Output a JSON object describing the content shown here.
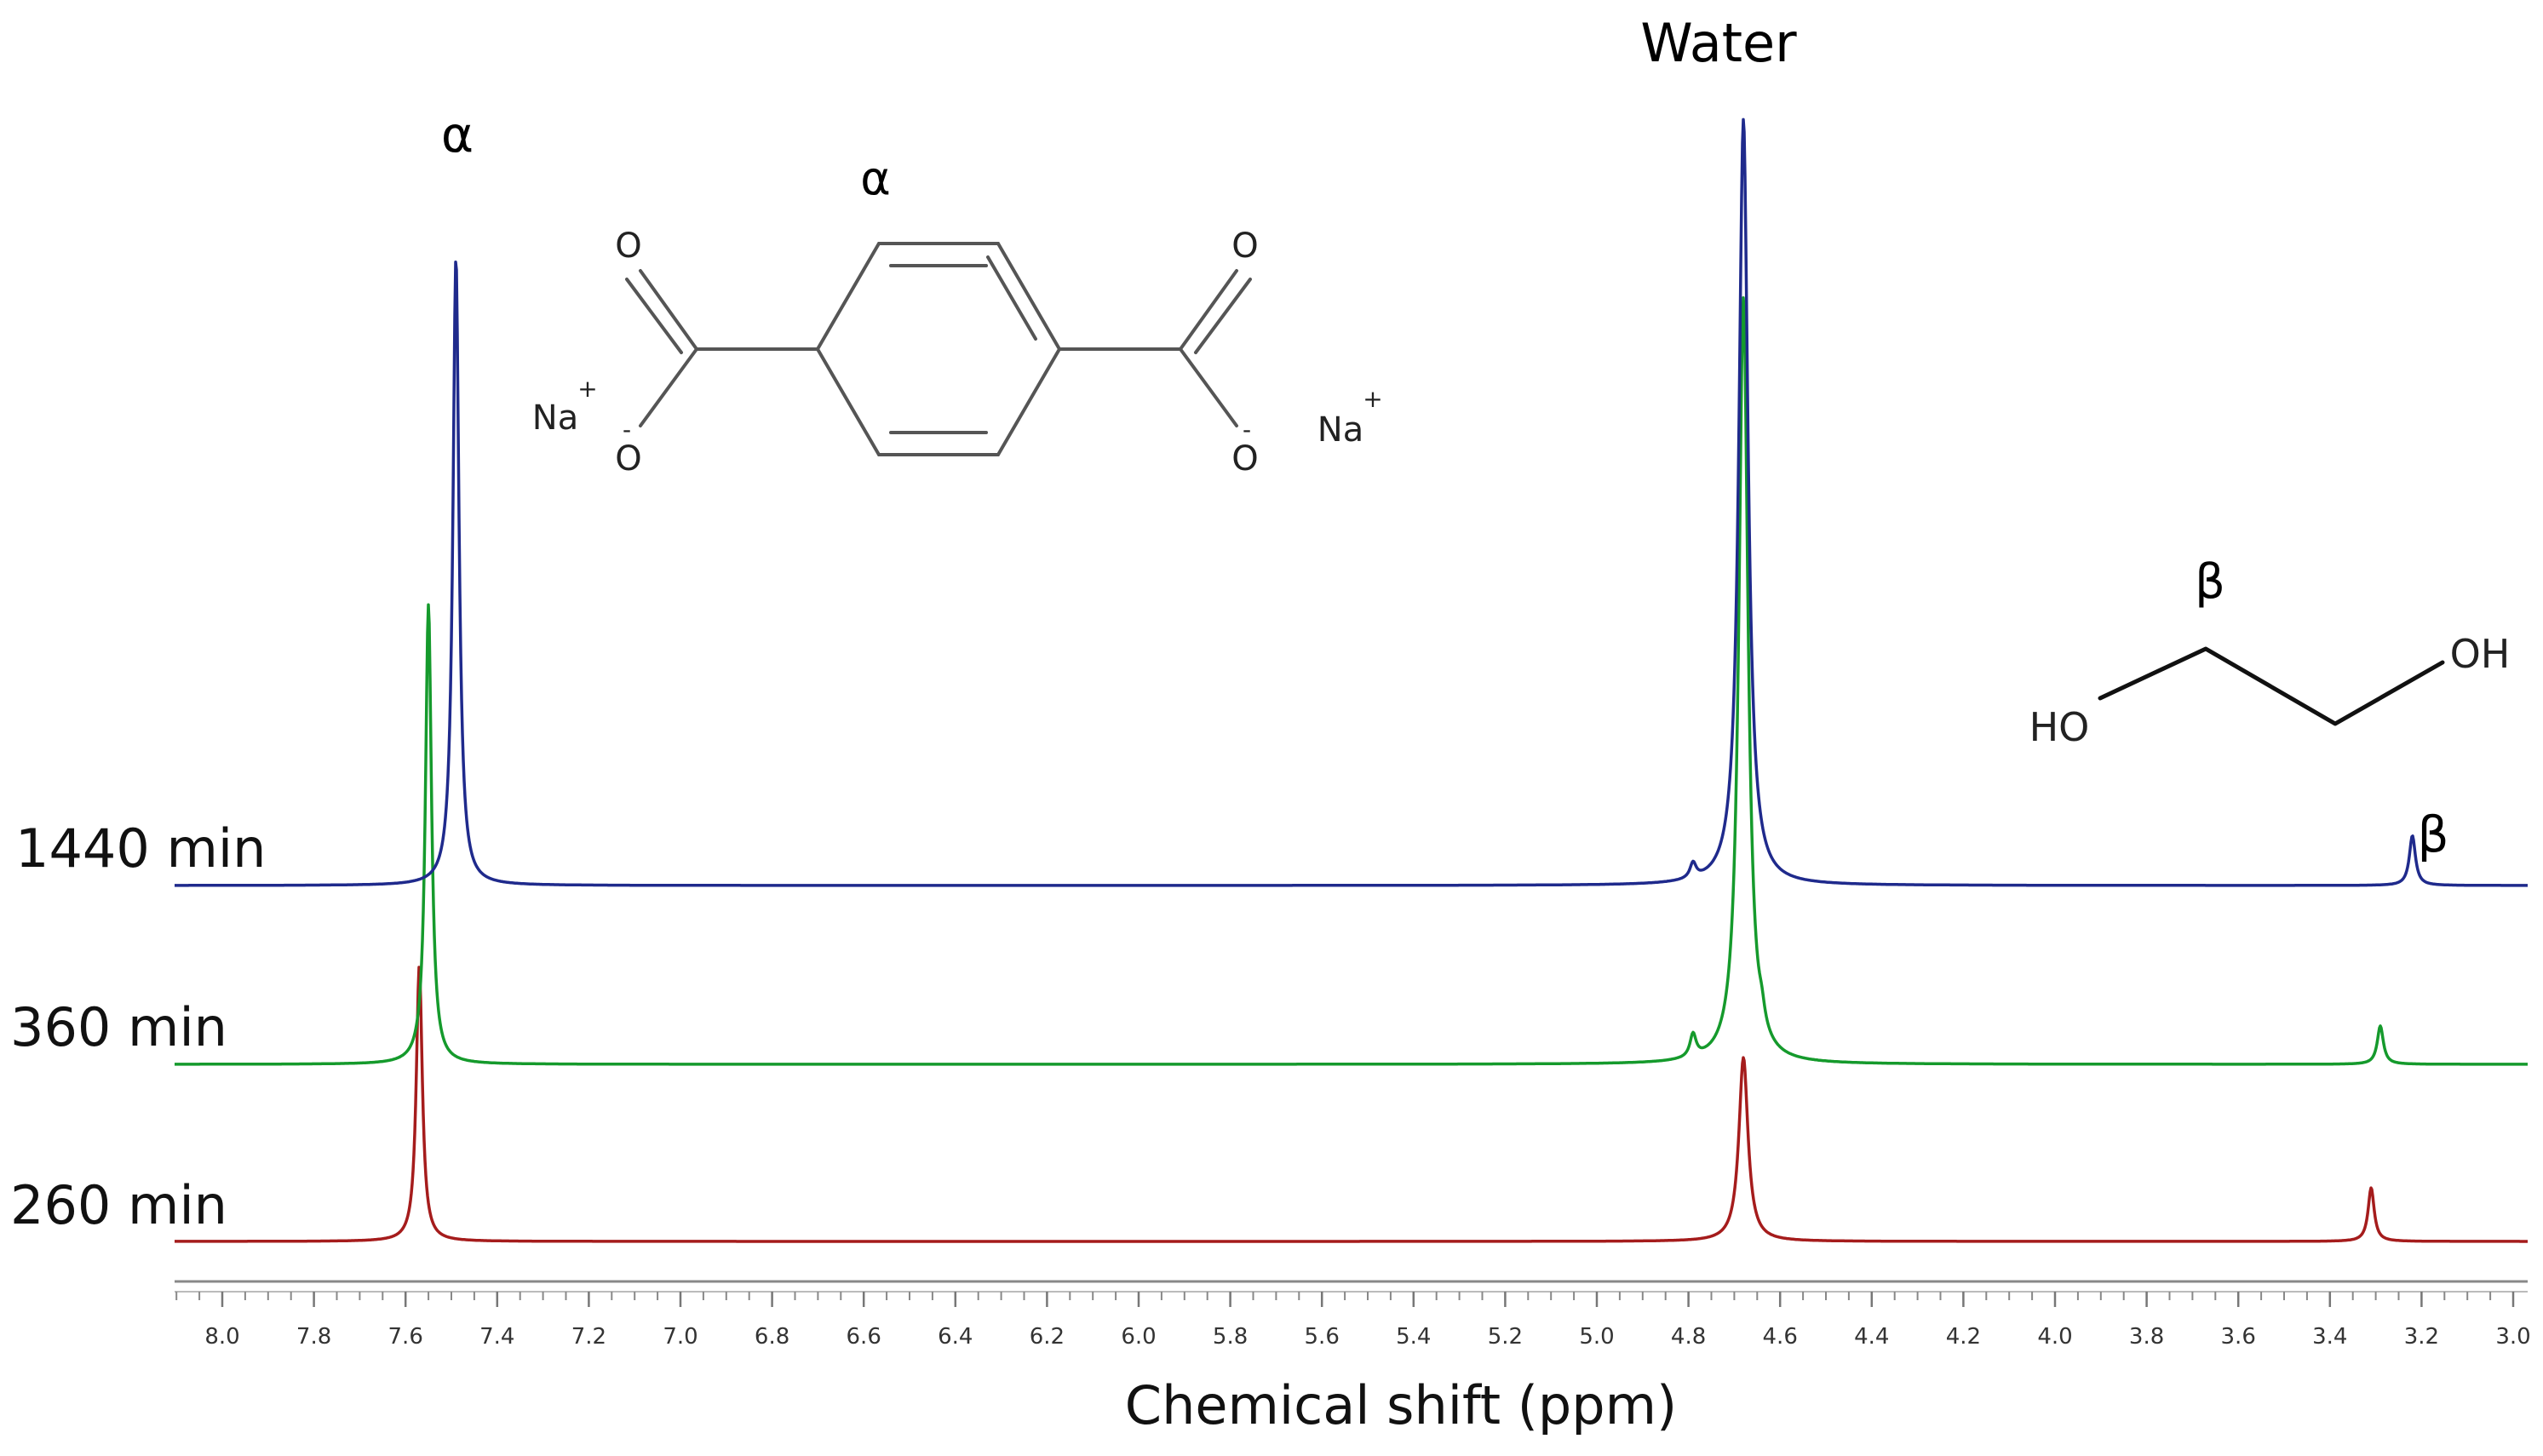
{
  "chart_data": {
    "type": "line",
    "xlabel": "Chemical shift (ppm)",
    "xlim": [
      8.12,
      2.93
    ],
    "x_ticks": [
      "8.0",
      "7.8",
      "7.6",
      "7.4",
      "7.2",
      "7.0",
      "6.8",
      "6.6",
      "6.4",
      "6.2",
      "6.0",
      "5.8",
      "5.6",
      "5.4",
      "5.2",
      "5.0",
      "4.8",
      "4.6",
      "4.4",
      "4.2",
      "4.0",
      "3.8",
      "3.6",
      "3.4",
      "3.2",
      "3.0"
    ],
    "annotations": {
      "water": "Water",
      "alpha_peak": "α",
      "beta_peak": "β"
    },
    "series": [
      {
        "name": "1440 min",
        "color": "#1f2a8c",
        "peaks": [
          {
            "x": 7.49,
            "height": 0.82
          },
          {
            "x": 4.79,
            "height": 0.02
          },
          {
            "x": 4.68,
            "height": 1.0
          },
          {
            "x": 3.22,
            "height": 0.065
          }
        ]
      },
      {
        "name": "360 min",
        "color": "#159a2c",
        "peaks": [
          {
            "x": 7.55,
            "height": 0.6
          },
          {
            "x": 4.79,
            "height": 0.03
          },
          {
            "x": 4.68,
            "height": 1.0
          },
          {
            "x": 4.64,
            "height": 0.02
          },
          {
            "x": 3.29,
            "height": 0.05
          }
        ]
      },
      {
        "name": "260 min",
        "color": "#a51c1c",
        "peaks": [
          {
            "x": 7.57,
            "height": 0.36
          },
          {
            "x": 4.68,
            "height": 0.24
          },
          {
            "x": 3.31,
            "height": 0.07
          }
        ]
      }
    ]
  },
  "structures": {
    "terephthalate": {
      "label": "α",
      "atoms": {
        "o_top_left": "O",
        "o_bot_left": "O",
        "o_top_right": "O",
        "o_bot_right": "O",
        "na_left": "Na",
        "na_right": "Na",
        "plus": "+",
        "minus": "-"
      }
    },
    "ethylene_glycol": {
      "label": "β",
      "ho": "HO",
      "oh": "OH"
    }
  }
}
